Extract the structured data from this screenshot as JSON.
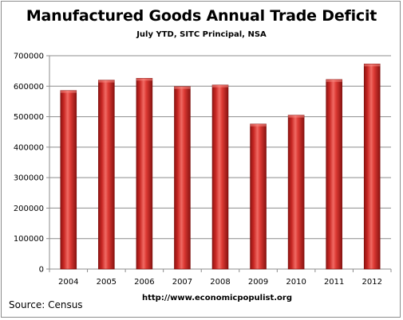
{
  "chart_data": {
    "type": "bar",
    "title": "Manufactured Goods Annual Trade Deficit",
    "subtitle": "July YTD, SITC Principal,  NSA",
    "categories": [
      "2004",
      "2005",
      "2006",
      "2007",
      "2008",
      "2009",
      "2010",
      "2011",
      "2012"
    ],
    "values": [
      586000,
      620000,
      626000,
      599000,
      604000,
      476000,
      505000,
      622000,
      673000
    ],
    "ylim": [
      0,
      700000
    ],
    "yticks": [
      0,
      100000,
      200000,
      300000,
      400000,
      500000,
      600000,
      700000
    ],
    "ytick_labels": [
      "0",
      "100000",
      "200000",
      "300000",
      "400000",
      "500000",
      "600000",
      "700000"
    ],
    "grid": true,
    "legend": "none",
    "bar_color": "#d8302c"
  },
  "footer": {
    "source": "Source: Census",
    "url": "http://www.economicpopulist.org"
  }
}
